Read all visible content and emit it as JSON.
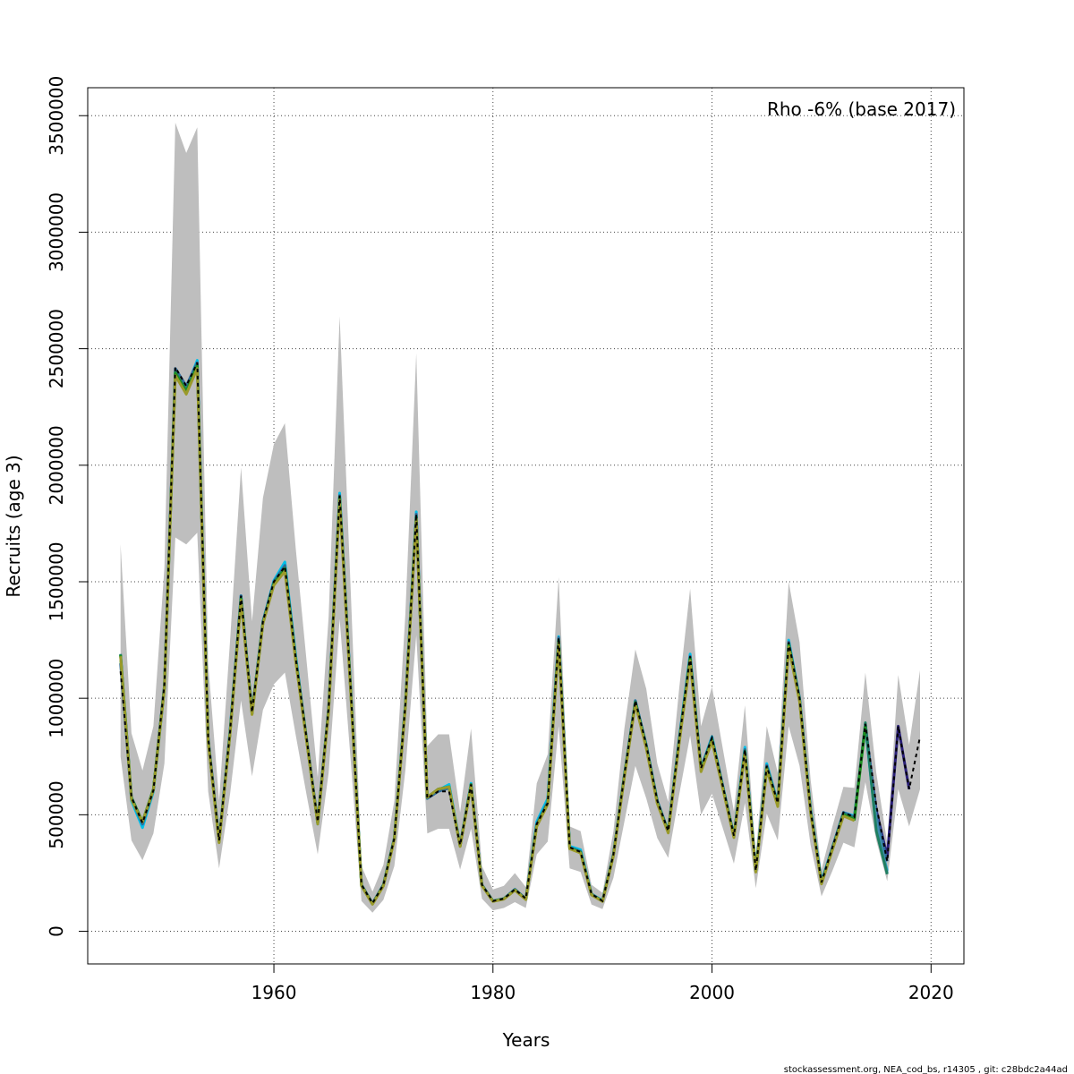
{
  "chart_data": {
    "type": "line",
    "title": "",
    "xlabel": "Years",
    "ylabel": "Recruits (age 3)",
    "annotation": "Rho -6% (base 2017)",
    "footer": "stockassessment.org, NEA_cod_bs, r14305 , git: c28bdc2a44ad",
    "xlim": [
      1943,
      2023
    ],
    "ylim": [
      -140000,
      3620000
    ],
    "x_ticks": [
      1960,
      1980,
      2000,
      2020
    ],
    "y_ticks": [
      0,
      500000,
      1000000,
      1500000,
      2000000,
      2500000,
      3000000,
      3500000
    ],
    "grid": true,
    "base_series": {
      "name": "",
      "x": [
        1946,
        1947,
        1948,
        1949,
        1950,
        1951,
        1952,
        1953,
        1954,
        1955,
        1956,
        1957,
        1958,
        1959,
        1960,
        1961,
        1962,
        1963,
        1964,
        1965,
        1966,
        1967,
        1968,
        1969,
        1970,
        1971,
        1972,
        1973,
        1974,
        1975,
        1976,
        1977,
        1978,
        1979,
        1980,
        1981,
        1982,
        1983,
        1984,
        1985,
        1986,
        1987,
        1988,
        1989,
        1990,
        1991,
        1992,
        1993,
        1994,
        1995,
        1996,
        1997,
        1998,
        1999,
        2000,
        2001,
        2002,
        2003,
        2004,
        2005,
        2006,
        2007,
        2008,
        2009,
        2010,
        2011,
        2012,
        2013,
        2014,
        2015,
        2016,
        2017,
        2018,
        2019
      ],
      "values": [
        1115000,
        575000,
        465000,
        605000,
        1060000,
        2420000,
        2340000,
        2440000,
        830000,
        390000,
        860000,
        1440000,
        940000,
        1330000,
        1500000,
        1565000,
        1170000,
        820000,
        470000,
        960000,
        1870000,
        1050000,
        200000,
        120000,
        200000,
        400000,
        970000,
        1790000,
        570000,
        600000,
        600000,
        370000,
        630000,
        200000,
        130000,
        140000,
        180000,
        140000,
        460000,
        550000,
        1260000,
        360000,
        340000,
        160000,
        130000,
        330000,
        670000,
        990000,
        800000,
        560000,
        430000,
        820000,
        1180000,
        700000,
        830000,
        620000,
        410000,
        780000,
        260000,
        710000,
        550000,
        1240000,
        1000000,
        520000,
        210000,
        360000,
        510000,
        490000,
        890000,
        540000,
        300000,
        880000,
        610000,
        835000
      ],
      "lower": [
        750000,
        390000,
        305000,
        420000,
        720000,
        1690000,
        1660000,
        1710000,
        600000,
        270000,
        590000,
        990000,
        665000,
        950000,
        1060000,
        1110000,
        840000,
        580000,
        330000,
        680000,
        1340000,
        740000,
        130000,
        80000,
        135000,
        280000,
        690000,
        1270000,
        420000,
        440000,
        440000,
        265000,
        440000,
        140000,
        90000,
        100000,
        125000,
        100000,
        330000,
        385000,
        880000,
        270000,
        255000,
        115000,
        95000,
        230000,
        470000,
        710000,
        570000,
        400000,
        315000,
        585000,
        840000,
        500000,
        590000,
        440000,
        290000,
        550000,
        185000,
        505000,
        390000,
        880000,
        710000,
        370000,
        150000,
        260000,
        380000,
        360000,
        640000,
        390000,
        215000,
        610000,
        450000,
        610000
      ],
      "upper": [
        1660000,
        850000,
        690000,
        880000,
        1560000,
        3470000,
        3340000,
        3450000,
        1150000,
        560000,
        1250000,
        1990000,
        1330000,
        1860000,
        2090000,
        2180000,
        1640000,
        1150000,
        660000,
        1350000,
        2640000,
        1480000,
        280000,
        170000,
        285000,
        560000,
        1360000,
        2480000,
        795000,
        845000,
        845000,
        510000,
        870000,
        280000,
        180000,
        195000,
        250000,
        190000,
        635000,
        760000,
        1520000,
        450000,
        430000,
        200000,
        165000,
        430000,
        870000,
        1210000,
        1040000,
        720000,
        555000,
        1040000,
        1470000,
        880000,
        1050000,
        780000,
        515000,
        970000,
        330000,
        880000,
        680000,
        1500000,
        1240000,
        650000,
        265000,
        450000,
        620000,
        615000,
        1110000,
        680000,
        380000,
        1100000,
        800000,
        1120000
      ]
    },
    "series": [
      {
        "color": "#00bfe8",
        "x": [
          1946,
          1947,
          1948,
          1949,
          1950,
          1951,
          1952,
          1953,
          1954,
          1955,
          1956,
          1957,
          1958,
          1959,
          1960,
          1961,
          1962,
          1963,
          1964,
          1965,
          1966,
          1967,
          1968,
          1969,
          1970,
          1971,
          1972,
          1973,
          1974,
          1975,
          1976,
          1977,
          1978,
          1979,
          1980,
          1981,
          1982,
          1983,
          1984,
          1985,
          1986,
          1987,
          1988,
          1989,
          1990,
          1991,
          1992,
          1993,
          1994,
          1995,
          1996,
          1997,
          1998,
          1999,
          2000,
          2001,
          2002,
          2003,
          2004,
          2005,
          2006,
          2007,
          2008,
          2009,
          2010,
          2011,
          2012,
          2013,
          2014,
          2015,
          2016
        ],
        "values": [
          1185000,
          560000,
          445000,
          600000,
          1040000,
          2400000,
          2330000,
          2450000,
          820000,
          385000,
          865000,
          1440000,
          940000,
          1330000,
          1505000,
          1585000,
          1180000,
          815000,
          460000,
          955000,
          1880000,
          1055000,
          195000,
          118000,
          200000,
          400000,
          975000,
          1800000,
          570000,
          605000,
          630000,
          370000,
          635000,
          198000,
          130000,
          140000,
          180000,
          138000,
          470000,
          570000,
          1265000,
          365000,
          350000,
          160000,
          132000,
          330000,
          670000,
          990000,
          800000,
          560000,
          430000,
          825000,
          1190000,
          700000,
          835000,
          620000,
          410000,
          790000,
          260000,
          720000,
          550000,
          1250000,
          1000000,
          525000,
          215000,
          360000,
          510000,
          495000,
          880000,
          440000,
          260000
        ]
      },
      {
        "color": "#2a1f78",
        "x": [
          2014,
          2015,
          2016,
          2017,
          2018
        ],
        "values": [
          880000,
          520000,
          320000,
          880000,
          610000
        ]
      },
      {
        "color": "#2f6b9a",
        "x": [
          1946,
          1947,
          1948,
          1949,
          1950,
          1951,
          1952,
          1953,
          1954,
          1955,
          1956,
          1957,
          1958,
          1959,
          1960,
          1961,
          1962,
          1963,
          1964,
          1965,
          1966,
          1967,
          1968,
          1969,
          1970,
          1971,
          1972,
          1973,
          1974,
          1975,
          1976,
          1977,
          1978,
          1979,
          1980,
          1981,
          1982,
          1983,
          1984,
          1985,
          1986,
          1987,
          1988,
          1989,
          1990,
          1991,
          1992,
          1993,
          1994,
          1995,
          1996,
          1997,
          1998,
          1999,
          2000,
          2001,
          2002,
          2003,
          2004,
          2005,
          2006,
          2007,
          2008,
          2009,
          2010,
          2011,
          2012,
          2013,
          2014,
          2015,
          2016
        ],
        "values": [
          1150000,
          570000,
          460000,
          605000,
          1055000,
          2415000,
          2340000,
          2440000,
          830000,
          390000,
          860000,
          1440000,
          940000,
          1330000,
          1500000,
          1570000,
          1170000,
          820000,
          470000,
          960000,
          1870000,
          1050000,
          200000,
          120000,
          200000,
          400000,
          970000,
          1790000,
          570000,
          600000,
          615000,
          370000,
          630000,
          200000,
          130000,
          140000,
          180000,
          140000,
          460000,
          555000,
          1260000,
          360000,
          342000,
          160000,
          130000,
          330000,
          670000,
          990000,
          800000,
          560000,
          430000,
          820000,
          1180000,
          700000,
          830000,
          620000,
          410000,
          780000,
          260000,
          712000,
          550000,
          1242000,
          1000000,
          520000,
          210000,
          360000,
          510000,
          490000,
          890000,
          500000,
          300000
        ]
      },
      {
        "color": "#3f8fae",
        "x": [
          2014,
          2015,
          2016
        ],
        "values": [
          880000,
          470000,
          250000
        ]
      },
      {
        "color": "#1f7f62",
        "x": [
          1946,
          1947,
          1948,
          1949,
          1950,
          1951,
          1952,
          1953,
          1954,
          1955,
          1956,
          1957,
          1958,
          1959,
          1960,
          1961,
          1962,
          1963,
          1964,
          1965,
          1966,
          1967,
          1968,
          1969,
          1970,
          1971,
          1972,
          1973,
          1974,
          1975,
          1976,
          1977,
          1978,
          1979,
          1980,
          1981,
          1982,
          1983,
          1984,
          1985,
          1986,
          1987,
          1988,
          1989,
          1990,
          1991,
          1992,
          1993,
          1994,
          1995,
          1996,
          1997,
          1998,
          1999,
          2000,
          2001,
          2002,
          2003,
          2004,
          2005,
          2006,
          2007,
          2008,
          2009,
          2010,
          2011,
          2012,
          2013,
          2014,
          2015,
          2016
        ],
        "values": [
          1190000,
          575000,
          470000,
          610000,
          1050000,
          2400000,
          2320000,
          2430000,
          820000,
          385000,
          855000,
          1430000,
          935000,
          1325000,
          1495000,
          1560000,
          1165000,
          815000,
          465000,
          955000,
          1865000,
          1045000,
          198000,
          118000,
          198000,
          398000,
          968000,
          1780000,
          575000,
          610000,
          620000,
          365000,
          630000,
          198000,
          130000,
          140000,
          178000,
          138000,
          455000,
          550000,
          1250000,
          358000,
          340000,
          158000,
          130000,
          328000,
          668000,
          985000,
          795000,
          555000,
          428000,
          815000,
          1175000,
          695000,
          825000,
          615000,
          408000,
          775000,
          258000,
          705000,
          545000,
          1235000,
          995000,
          515000,
          208000,
          355000,
          505000,
          485000,
          895000,
          430000,
          245000
        ]
      },
      {
        "color": "#1e8f1e",
        "x": [
          1946,
          1947,
          1948,
          1949,
          1950,
          1951,
          1952,
          1953,
          1954,
          1955,
          1956,
          1957,
          1958,
          1959,
          1960,
          1961,
          1962,
          1963,
          1964,
          1965,
          1966,
          1967,
          1968,
          1969,
          1970,
          1971,
          1972,
          1973,
          1974,
          1975,
          1976,
          1977,
          1978,
          1979,
          1980,
          1981,
          1982,
          1983,
          1984,
          1985,
          1986,
          1987,
          1988,
          1989,
          1990,
          1991,
          1992,
          1993,
          1994,
          1995,
          1996,
          1997,
          1998,
          1999,
          2000,
          2001,
          2002,
          2003,
          2004,
          2005,
          2006,
          2007,
          2008,
          2009,
          2010,
          2011,
          2012,
          2013,
          2014
        ],
        "values": [
          1185000,
          570000,
          470000,
          610000,
          1045000,
          2395000,
          2315000,
          2425000,
          818000,
          383000,
          852000,
          1425000,
          932000,
          1322000,
          1490000,
          1555000,
          1160000,
          812000,
          463000,
          950000,
          1860000,
          1040000,
          197000,
          117000,
          197000,
          396000,
          965000,
          1775000,
          575000,
          610000,
          620000,
          365000,
          628000,
          197000,
          129000,
          139000,
          177000,
          137000,
          453000,
          548000,
          1245000,
          356000,
          338000,
          157000,
          129000,
          326000,
          665000,
          980000,
          790000,
          552000,
          425000,
          810000,
          1170000,
          690000,
          820000,
          612000,
          405000,
          770000,
          256000,
          700000,
          540000,
          1230000,
          990000,
          512000,
          205000,
          352000,
          500000,
          480000,
          880000
        ]
      },
      {
        "color": "#9a9a2a",
        "x": [
          1946,
          1947,
          1948,
          1949,
          1950,
          1951,
          1952,
          1953,
          1954,
          1955,
          1956,
          1957,
          1958,
          1959,
          1960,
          1961,
          1962,
          1963,
          1964,
          1965,
          1966,
          1967,
          1968,
          1969,
          1970,
          1971,
          1972,
          1973,
          1974,
          1975,
          1976,
          1977,
          1978,
          1979,
          1980,
          1981,
          1982,
          1983,
          1984,
          1985,
          1986,
          1987,
          1988,
          1989,
          1990,
          1991,
          1992,
          1993,
          1994,
          1995,
          1996,
          1997,
          1998,
          1999,
          2000,
          2001,
          2002,
          2003,
          2004,
          2005,
          2006,
          2007,
          2008,
          2009,
          2010,
          2011,
          2012,
          2013
        ],
        "values": [
          1180000,
          565000,
          470000,
          605000,
          1040000,
          2385000,
          2305000,
          2415000,
          815000,
          380000,
          850000,
          1420000,
          930000,
          1320000,
          1485000,
          1545000,
          1155000,
          810000,
          460000,
          945000,
          1850000,
          1035000,
          195000,
          116000,
          195000,
          394000,
          960000,
          1770000,
          575000,
          610000,
          620000,
          364000,
          625000,
          196000,
          128000,
          138000,
          176000,
          136000,
          450000,
          545000,
          1240000,
          354000,
          336000,
          156000,
          128000,
          324000,
          660000,
          975000,
          785000,
          548000,
          422000,
          805000,
          1160000,
          685000,
          815000,
          608000,
          402000,
          765000,
          254000,
          695000,
          535000,
          1220000,
          985000,
          508000,
          203000,
          350000,
          495000,
          475000
        ]
      }
    ]
  }
}
